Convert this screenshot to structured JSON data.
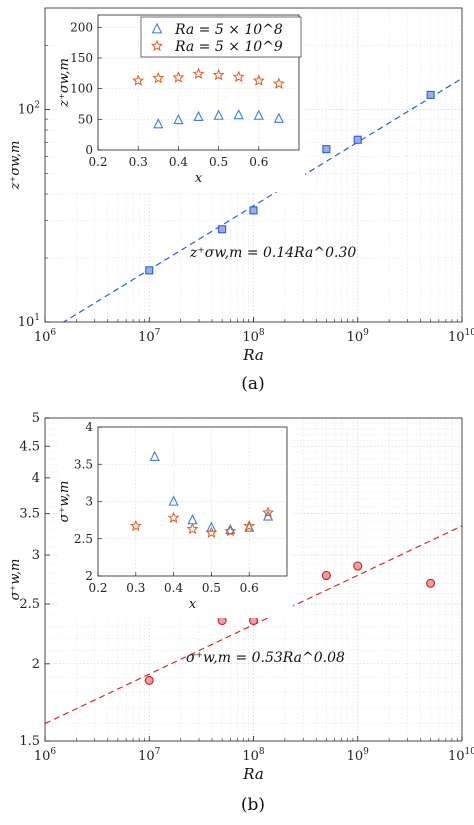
{
  "chart_data": [
    {
      "id": "a",
      "type": "scatter",
      "caption": "(a)",
      "xlabel": "Ra",
      "ylabel": "z⁺σw,m",
      "xscale": "log",
      "yscale": "log",
      "xlim": [
        1000000,
        10000000000
      ],
      "ylim": [
        10,
        300
      ],
      "grid": true,
      "x_ticks": [
        {
          "v": 1000000,
          "m": "10",
          "e": "6"
        },
        {
          "v": 10000000,
          "m": "10",
          "e": "7"
        },
        {
          "v": 100000000,
          "m": "10",
          "e": "8"
        },
        {
          "v": 1000000000,
          "m": "10",
          "e": "9"
        },
        {
          "v": 10000000000,
          "m": "10",
          "e": "10"
        }
      ],
      "y_ticks": [
        {
          "v": 10,
          "m": "10",
          "e": "1"
        },
        {
          "v": 100,
          "m": "10",
          "e": "2"
        }
      ],
      "series": [
        {
          "marker": "square",
          "color": "#2a5fd1",
          "fill": "#9aaee6",
          "x": [
            10000000,
            50000000,
            100000000,
            500000000,
            1000000000,
            5000000000
          ],
          "y": [
            17.5,
            27.3,
            33.5,
            65,
            72,
            117
          ]
        }
      ],
      "fit": {
        "label": "z⁺σw,m = 0.14Ra^0.30",
        "coef": 0.14,
        "exp": 0.3,
        "color": "#2a5fd1",
        "style": "dashed"
      },
      "inset": {
        "type": "scatter",
        "xlabel": "x",
        "ylabel": "z⁺σw,m",
        "xlim": [
          0.2,
          0.7
        ],
        "ylim": [
          0,
          220
        ],
        "grid": true,
        "x_ticks": [
          "0.2",
          "0.3",
          "0.4",
          "0.5",
          "0.6"
        ],
        "x_tick_values": [
          0.2,
          0.3,
          0.4,
          0.5,
          0.6
        ],
        "y_ticks": [
          "0",
          "50",
          "100",
          "150",
          "200"
        ],
        "y_tick_values": [
          0,
          50,
          100,
          150,
          200
        ],
        "legend": "top-right",
        "series": [
          {
            "name": "Ra = 5 × 10^8",
            "marker": "triangle",
            "color": "#3b7fd9",
            "x": [
              0.35,
              0.4,
              0.45,
              0.5,
              0.55,
              0.6,
              0.65
            ],
            "y": [
              42,
              49,
              54,
              56,
              57,
              56,
              51
            ]
          },
          {
            "name": "Ra = 5 × 10^9",
            "marker": "star",
            "color": "#e25a1f",
            "x": [
              0.3,
              0.35,
              0.4,
              0.45,
              0.5,
              0.55,
              0.6,
              0.65
            ],
            "y": [
              113,
              117,
              118,
              124,
              122,
              119,
              113,
              108
            ]
          }
        ]
      }
    },
    {
      "id": "b",
      "type": "scatter",
      "caption": "(b)",
      "xlabel": "Ra",
      "ylabel": "σ⁺w,m",
      "xscale": "log",
      "yscale": "log",
      "xlim": [
        1000000,
        10000000000
      ],
      "ylim": [
        1.5,
        5
      ],
      "grid": true,
      "x_ticks": [
        {
          "v": 1000000,
          "m": "10",
          "e": "6"
        },
        {
          "v": 10000000,
          "m": "10",
          "e": "7"
        },
        {
          "v": 100000000,
          "m": "10",
          "e": "8"
        },
        {
          "v": 1000000000,
          "m": "10",
          "e": "9"
        },
        {
          "v": 10000000000,
          "m": "10",
          "e": "10"
        }
      ],
      "y_ticks": [
        {
          "v": 1.5,
          "t": "1.5"
        },
        {
          "v": 2,
          "t": "2"
        },
        {
          "v": 2.5,
          "t": "2.5"
        },
        {
          "v": 3,
          "t": "3"
        },
        {
          "v": 3.5,
          "t": "3.5"
        },
        {
          "v": 4,
          "t": "4"
        },
        {
          "v": 4.5,
          "t": "4.5"
        },
        {
          "v": 5,
          "t": "5"
        }
      ],
      "series": [
        {
          "marker": "circle",
          "color": "#c8202a",
          "fill": "#e9a0a0",
          "x": [
            10000000,
            50000000,
            100000000,
            500000000,
            1000000000,
            5000000000
          ],
          "y": [
            1.88,
            2.35,
            2.35,
            2.78,
            2.88,
            2.7
          ]
        }
      ],
      "fit": {
        "label": "σ⁺w,m = 0.53Ra^0.08",
        "coef": 0.53,
        "exp": 0.08,
        "color": "#d42a2a",
        "style": "dashed"
      },
      "inset": {
        "type": "scatter",
        "xlabel": "x",
        "ylabel": "σ⁺w,m",
        "xlim": [
          0.2,
          0.7
        ],
        "ylim": [
          2,
          4
        ],
        "grid": true,
        "x_ticks": [
          "0.2",
          "0.3",
          "0.4",
          "0.5",
          "0.6"
        ],
        "x_tick_values": [
          0.2,
          0.3,
          0.4,
          0.5,
          0.6
        ],
        "y_ticks": [
          "2",
          "2.5",
          "3",
          "3.5",
          "4"
        ],
        "y_tick_values": [
          2,
          2.5,
          3,
          3.5,
          4
        ],
        "series": [
          {
            "marker": "triangle",
            "color": "#3b7fd9",
            "x": [
              0.35,
              0.4,
              0.45,
              0.5,
              0.55,
              0.6,
              0.65
            ],
            "y": [
              3.6,
              3.0,
              2.75,
              2.65,
              2.62,
              2.65,
              2.8
            ]
          },
          {
            "marker": "star",
            "color": "#e25a1f",
            "x": [
              0.3,
              0.4,
              0.45,
              0.5,
              0.55,
              0.6,
              0.65
            ],
            "y": [
              2.67,
              2.78,
              2.63,
              2.58,
              2.6,
              2.67,
              2.85
            ]
          }
        ]
      }
    }
  ]
}
